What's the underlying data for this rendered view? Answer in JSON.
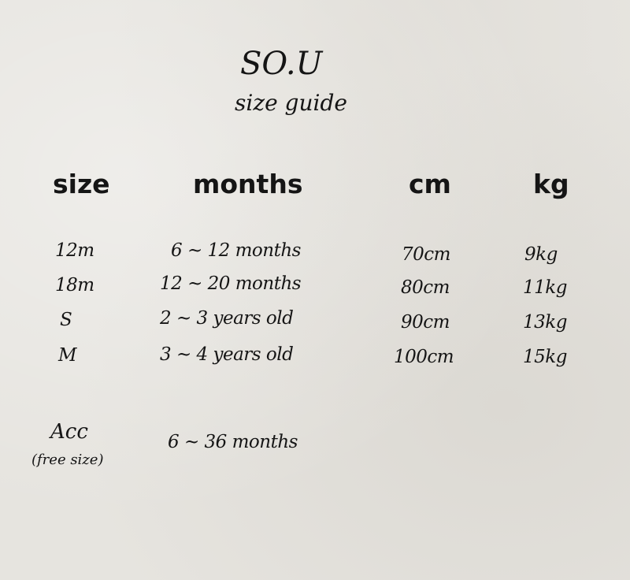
{
  "brand": "SO.U",
  "subtitle": "size guide",
  "headers": {
    "size": "size",
    "months": "months",
    "cm": "cm",
    "kg": "kg"
  },
  "rows": [
    {
      "size": "12m",
      "age": "6 ~ 12 months",
      "cm": "70cm",
      "kg": "9kg"
    },
    {
      "size": "18m",
      "age": "12 ~ 20 months",
      "cm": "80cm",
      "kg": "11kg"
    },
    {
      "size": "S",
      "age": "2 ~ 3 years old",
      "cm": "90cm",
      "kg": "13kg"
    },
    {
      "size": "M",
      "age": "3 ~ 4 years old",
      "cm": "100cm",
      "kg": "15kg"
    }
  ],
  "accessory": {
    "size": "Acc",
    "note": "(free size)",
    "age": "6 ~ 36 months"
  }
}
